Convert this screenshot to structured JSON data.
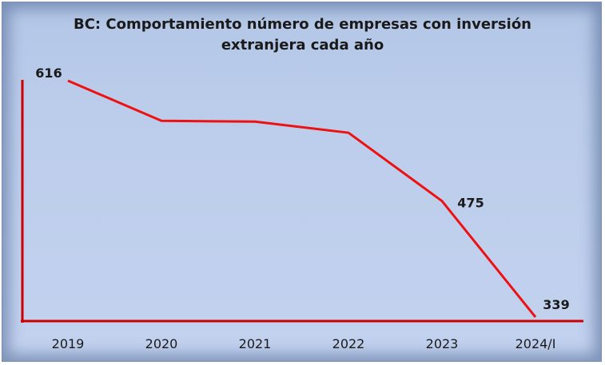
{
  "chart_data": {
    "type": "line",
    "title_line1": "BC: Comportamiento número de empresas con inversión",
    "title_line2": "extranjera cada año",
    "categories": [
      "2019",
      "2020",
      "2021",
      "2022",
      "2023",
      "2024/I"
    ],
    "series": [
      {
        "values": [
          616,
          569,
          568,
          555,
          475,
          339
        ]
      }
    ],
    "data_labels": [
      "616",
      "",
      "",
      "",
      "475",
      "339"
    ],
    "xlabel": "",
    "ylabel": "",
    "ylim": [
      339,
      616
    ],
    "grid": false,
    "legend": "none",
    "line_color": "#ee1111",
    "axis_color": "#cc0000"
  }
}
